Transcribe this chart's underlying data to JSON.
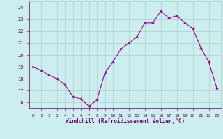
{
  "x": [
    0,
    1,
    2,
    3,
    4,
    5,
    6,
    7,
    8,
    9,
    10,
    11,
    12,
    13,
    14,
    15,
    16,
    17,
    18,
    19,
    20,
    21,
    22,
    23
  ],
  "y": [
    19.0,
    18.7,
    18.3,
    18.0,
    17.5,
    16.5,
    16.3,
    15.7,
    16.2,
    18.5,
    19.4,
    20.5,
    21.0,
    21.5,
    22.7,
    22.7,
    23.7,
    23.1,
    23.3,
    22.7,
    22.2,
    20.6,
    19.4,
    17.2
  ],
  "line_color": "#990099",
  "marker_color": "#990099",
  "bg_color": "#cceeee",
  "grid_color": "#aacccc",
  "xlabel": "Windchill (Refroidissement éolien,°C)",
  "xlabel_color": "#660066",
  "tick_color": "#660066",
  "ylim": [
    15.5,
    24.5
  ],
  "xlim": [
    -0.5,
    23.5
  ],
  "yticks": [
    16,
    17,
    18,
    19,
    20,
    21,
    22,
    23,
    24
  ],
  "xticks": [
    0,
    1,
    2,
    3,
    4,
    5,
    6,
    7,
    8,
    9,
    10,
    11,
    12,
    13,
    14,
    15,
    16,
    17,
    18,
    19,
    20,
    21,
    22,
    23
  ]
}
